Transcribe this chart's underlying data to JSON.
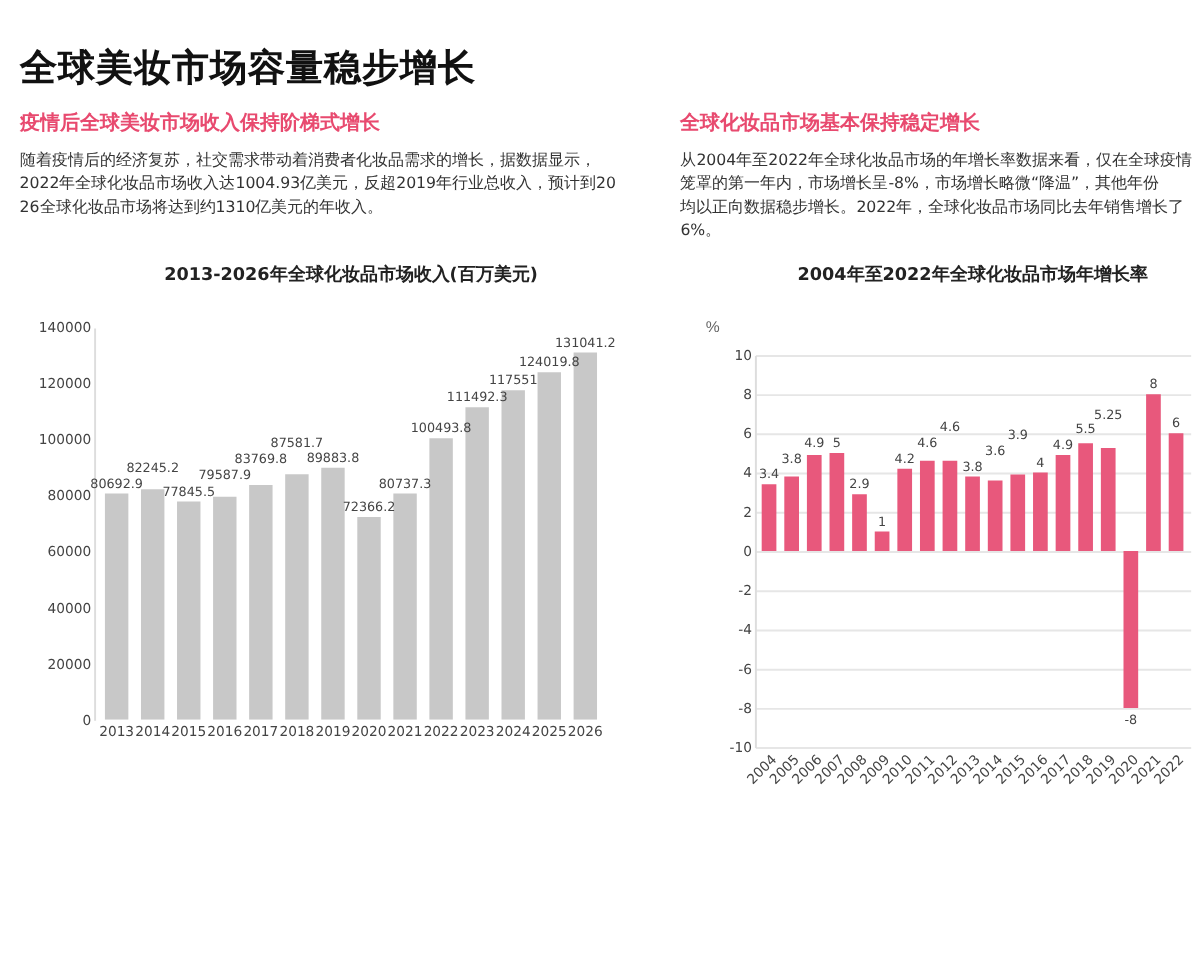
{
  "chart_data": [
    {
      "type": "bar",
      "title": "2013-2026年全球化妆品市场收入(百万美元)",
      "annotations": [
        "全球美妆市场容量稳步增长",
        "疫情后全球美妆市场收入保持阶梯式增长",
        "随着疫情后的经济复苏，社交需求带动着消费者化妆品需求的增长，据数据显示，2022年全球化妆品市场收入达1004.93亿美元，反超2019年行业总收入，预计到2026全球化妆品市场将达到约1310亿美元的年收入。"
      ],
      "categories": [
        "2013",
        "2014",
        "2015",
        "2016",
        "2017",
        "2018",
        "2019",
        "2020",
        "2021",
        "2022",
        "2023",
        "2024",
        "2025",
        "2026"
      ],
      "values": [
        80692.9,
        82245.2,
        77845.5,
        79587.9,
        83769.8,
        87581.7,
        89883.8,
        72366.2,
        80737.3,
        100493.8,
        111492.3,
        117551,
        124019.8,
        131041.2
      ],
      "color": "#c8c8c8",
      "ylim": [
        0,
        140000
      ],
      "yticks": [
        0,
        20000,
        40000,
        60000,
        80000,
        100000,
        120000,
        140000
      ],
      "grid": false,
      "data_labels": true
    },
    {
      "type": "bar",
      "title": "2004年至2022年全球化妆品市场年增长率",
      "ylabel": "%",
      "annotations": [
        "全球化妆品市场基本保持稳定增长",
        "从2004年至2022年全球化妆品市场的年增长率数据来看，仅在全球疫情笼罩的第一年内，市场增长呈-8%，市场增长略微“降温”，其他年份均以正向数据稳步增长。2022年，全球化妆品市场同比去年销售增长了6%。"
      ],
      "categories": [
        "2004",
        "2005",
        "2006",
        "2007",
        "2008",
        "2009",
        "2010",
        "2011",
        "2012",
        "2013",
        "2014",
        "2015",
        "2016",
        "2017",
        "2018",
        "2019",
        "2020",
        "2021",
        "2022"
      ],
      "values": [
        3.4,
        3.8,
        4.9,
        5,
        2.9,
        1,
        4.2,
        4.6,
        4.6,
        3.8,
        3.6,
        3.9,
        4,
        4.9,
        5.5,
        5.25,
        -8,
        8,
        6
      ],
      "color": "#e8587c",
      "ylim": [
        -10,
        10
      ],
      "yticks": [
        -10,
        -8,
        -6,
        -4,
        -2,
        0,
        2,
        4,
        6,
        8,
        10
      ],
      "grid": "y",
      "data_labels": true
    }
  ]
}
